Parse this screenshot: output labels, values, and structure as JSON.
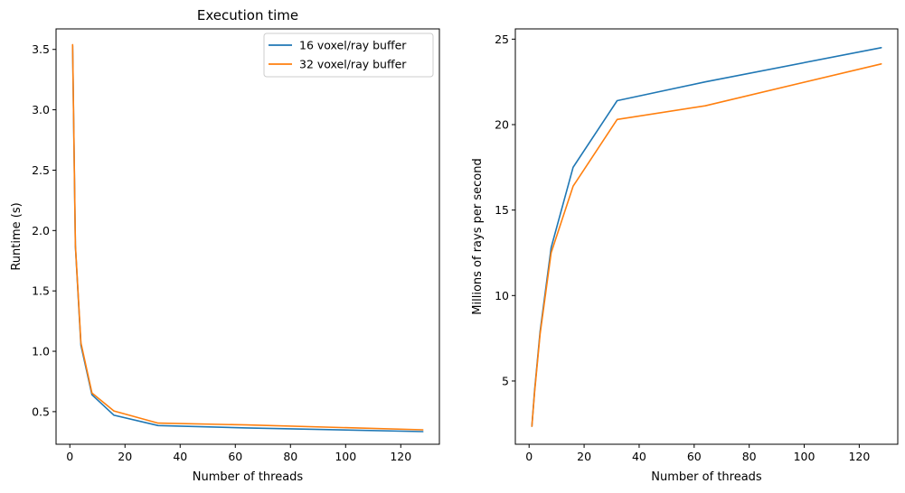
{
  "colors": {
    "series_1": "#1f77b4",
    "series_2": "#ff7f0e"
  },
  "chart_data": [
    {
      "type": "line",
      "title": "Execution time",
      "xlabel": "Number of threads",
      "ylabel": "Runtime (s)",
      "xlim": [
        -5,
        134
      ],
      "ylim": [
        0.23,
        3.67
      ],
      "xticks": [
        0,
        20,
        40,
        60,
        80,
        100,
        120
      ],
      "yticks": [
        0.5,
        1.0,
        1.5,
        2.0,
        2.5,
        3.0,
        3.5
      ],
      "ytick_labels": [
        "0.5",
        "1.0",
        "1.5",
        "2.0",
        "2.5",
        "3.0",
        "3.5"
      ],
      "legend": "top-right",
      "x": [
        1,
        2,
        4,
        8,
        16,
        32,
        64,
        128
      ],
      "series": [
        {
          "name": "16 voxel/ray buffer",
          "values": [
            3.53,
            1.87,
            1.05,
            0.64,
            0.47,
            0.385,
            0.365,
            0.335
          ]
        },
        {
          "name": "32 voxel/ray buffer",
          "values": [
            3.54,
            1.88,
            1.07,
            0.655,
            0.505,
            0.405,
            0.39,
            0.35
          ]
        }
      ]
    },
    {
      "type": "line",
      "title": "",
      "xlabel": "Number of threads",
      "ylabel": "Millions of rays per second",
      "xlim": [
        -5,
        134
      ],
      "ylim": [
        1.3,
        25.6
      ],
      "xticks": [
        0,
        20,
        40,
        60,
        80,
        100,
        120
      ],
      "yticks": [
        5,
        10,
        15,
        20,
        25
      ],
      "ytick_labels": [
        "5",
        "10",
        "15",
        "20",
        "25"
      ],
      "x": [
        1,
        2,
        4,
        8,
        16,
        32,
        64,
        128
      ],
      "series": [
        {
          "name": "16 voxel/ray buffer",
          "values": [
            2.35,
            4.45,
            7.9,
            12.8,
            17.5,
            21.4,
            22.5,
            24.5
          ]
        },
        {
          "name": "32 voxel/ray buffer",
          "values": [
            2.35,
            4.35,
            7.75,
            12.5,
            16.4,
            20.3,
            21.1,
            23.55
          ]
        }
      ]
    }
  ]
}
